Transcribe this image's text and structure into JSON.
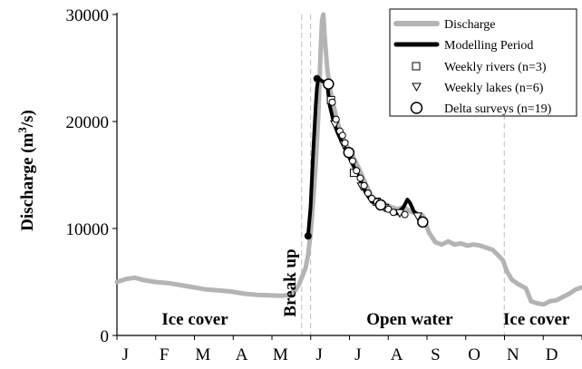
{
  "chart_data": {
    "type": "line",
    "ylabel": "Discharge (m",
    "ylabel_sup": "3",
    "ylabel_end": "/s)",
    "ylim": [
      0,
      30000
    ],
    "y_ticks": [
      0,
      10000,
      20000,
      30000
    ],
    "x_ticks": [
      "J",
      "F",
      "M",
      "A",
      "M",
      "J",
      "J",
      "A",
      "S",
      "O",
      "N",
      "D"
    ],
    "xlim_days": [
      0,
      365
    ],
    "period_boundaries_day": [
      145,
      152,
      304
    ],
    "season_labels": [
      "Ice cover",
      "Break up",
      "Open water",
      "Ice cover"
    ],
    "legend_position": "top-right",
    "series": [
      {
        "name": "Discharge",
        "color": "#b4b4b4",
        "x": [
          0,
          8,
          14,
          20,
          30,
          40,
          50,
          60,
          70,
          80,
          90,
          100,
          110,
          120,
          130,
          135,
          140,
          143,
          146,
          148,
          150,
          152,
          154,
          156,
          158,
          159,
          160,
          161,
          162,
          163,
          165,
          167,
          170,
          173,
          176,
          180,
          185,
          190,
          195,
          200,
          205,
          210,
          215,
          220,
          225,
          230,
          235,
          240,
          245,
          250,
          255,
          260,
          265,
          270,
          275,
          280,
          285,
          290,
          295,
          300,
          303,
          306,
          310,
          315,
          318,
          321,
          325,
          330,
          335,
          340,
          345,
          350,
          355,
          360,
          365
        ],
        "values": [
          5000,
          5300,
          5400,
          5200,
          5000,
          4900,
          4700,
          4500,
          4300,
          4200,
          4100,
          3900,
          3800,
          3750,
          3700,
          3800,
          4200,
          4800,
          5700,
          6300,
          7500,
          9500,
          12500,
          16000,
          20500,
          24000,
          27000,
          29500,
          30000,
          28000,
          25000,
          23200,
          21500,
          20000,
          18800,
          17800,
          16800,
          15600,
          14200,
          13000,
          12400,
          12300,
          12000,
          11800,
          12000,
          11600,
          11400,
          11200,
          9600,
          8700,
          8500,
          8800,
          8500,
          8600,
          8400,
          8500,
          8400,
          8200,
          8000,
          7400,
          7000,
          6000,
          5200,
          4800,
          4600,
          4400,
          3200,
          3000,
          2900,
          3200,
          3300,
          3600,
          3900,
          4300,
          4500
        ]
      },
      {
        "name": "Modelling Period",
        "color": "#000000",
        "x": [
          150,
          152,
          154,
          156,
          157,
          158,
          165,
          167,
          170,
          173,
          176,
          180,
          185,
          190,
          195,
          200,
          205,
          210,
          215,
          220,
          225,
          228,
          230,
          233,
          235,
          240
        ],
        "values": [
          9300,
          12000,
          17000,
          21500,
          23200,
          24000,
          23500,
          21500,
          20000,
          19000,
          18200,
          17200,
          16000,
          14800,
          13400,
          12500,
          12200,
          12100,
          11600,
          11400,
          12000,
          12700,
          12400,
          11600,
          11400,
          10700
        ]
      },
      {
        "name": "Weekly rivers (n=3)",
        "marker": "square",
        "x": [
          168,
          186,
          204
        ],
        "values": [
          22000,
          15200,
          12500
        ]
      },
      {
        "name": "Weekly lakes (n=6)",
        "marker": "triangle",
        "x": [
          171,
          178,
          192,
          210,
          222,
          236
        ],
        "values": [
          19800,
          17900,
          14000,
          12000,
          11500,
          11200
        ]
      },
      {
        "name": "Delta surveys (n=19)",
        "marker": "circle",
        "x": [
          166,
          169,
          172,
          175,
          177,
          179,
          182,
          185,
          188,
          191,
          194,
          197,
          200,
          204,
          207,
          213,
          217,
          226,
          240
        ],
        "values": [
          23500,
          21800,
          20200,
          19100,
          18700,
          18000,
          17100,
          16300,
          15400,
          14700,
          14000,
          13300,
          12800,
          12500,
          12200,
          11800,
          11500,
          11300,
          10600
        ]
      }
    ]
  }
}
